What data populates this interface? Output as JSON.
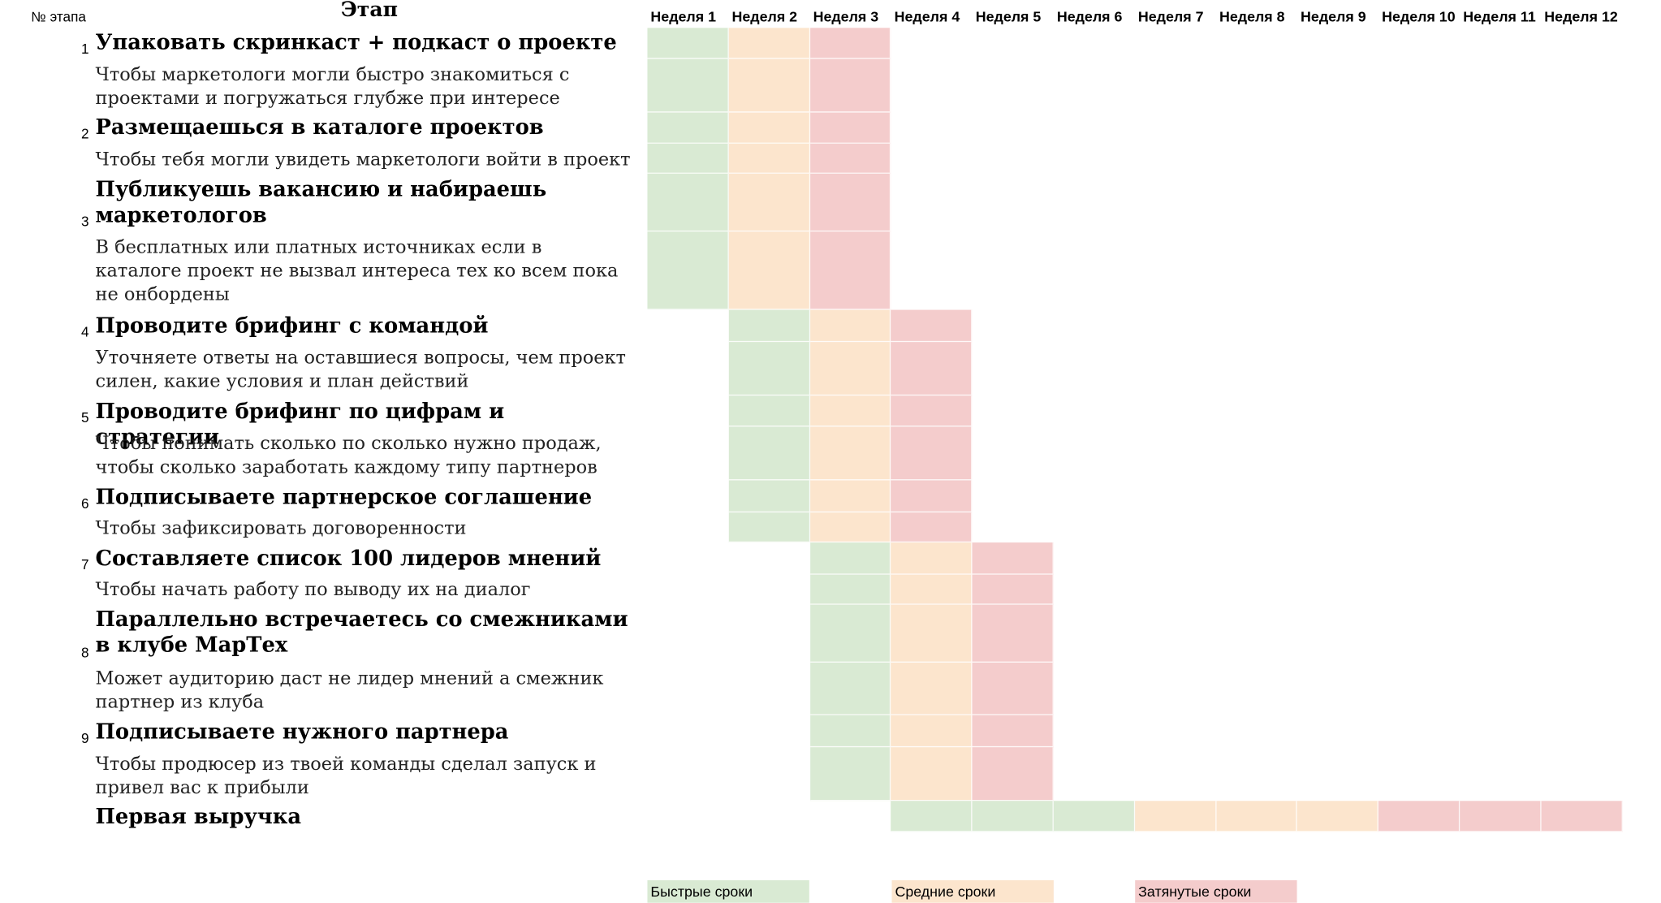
{
  "header": {
    "num_label": "№ этапа",
    "stage_label": "Этап",
    "weeks": [
      "Неделя 1",
      "Неделя 2",
      "Неделя 3",
      "Неделя 4",
      "Неделя 5",
      "Неделя 6",
      "Неделя 7",
      "Неделя 8",
      "Неделя 9",
      "Неделя 10",
      "Неделя 11",
      "Неделя 12"
    ]
  },
  "colors": {
    "fast": "#d9ead3",
    "medium": "#fce5cd",
    "slow": "#f4cccc"
  },
  "stages": [
    {
      "num": "1",
      "title": "Упаковать скринкаст + подкаст о проекте",
      "desc": "Чтобы маркетологи могли быстро знакомиться с проектами и погружаться глубже при интересе"
    },
    {
      "num": "2",
      "title": "Размещаешься в каталоге проектов",
      "desc": "Чтобы тебя могли увидеть маркетологи войти в проект"
    },
    {
      "num": "3",
      "title": "Публикуешь вакансию и набираешь маркетологов",
      "desc": "В бесплатных или платных источниках если в каталоге проект не вызвал интереса тех ко всем пока не онбордены"
    },
    {
      "num": "4",
      "title": "Проводите брифинг с командой",
      "desc": "Уточняете ответы на оставшиеся вопросы, чем проект силен, какие условия и план действий"
    },
    {
      "num": "5",
      "title": "Проводите брифинг по цифрам и стратегии",
      "desc": "Чтобы понимать сколько по сколько нужно продаж, чтобы сколько заработать каждому типу партнеров"
    },
    {
      "num": "6",
      "title": "Подписываете партнерское соглашение",
      "desc": "Чтобы зафиксировать договоренности"
    },
    {
      "num": "7",
      "title": "Составляете список 100 лидеров мнений",
      "desc": "Чтобы начать работу по выводу их на диалог"
    },
    {
      "num": "8",
      "title": "Параллельно встречаетесь со смежниками в клубе МарТех",
      "desc": "Может аудиторию даст не лидер мнений а смежник партнер из клуба"
    },
    {
      "num": "9",
      "title": "Подписываете нужного партнера",
      "desc": "Чтобы продюсер из твоей команды сделал запуск и привел вас к прибыли"
    },
    {
      "num": "",
      "title": "Первая выручка",
      "desc": ""
    }
  ],
  "schedule": [
    {
      "group": "1-3",
      "fast": [
        1
      ],
      "medium": [
        2
      ],
      "slow": [
        3
      ]
    },
    {
      "group": "4-6",
      "fast": [
        2
      ],
      "medium": [
        3
      ],
      "slow": [
        4
      ]
    },
    {
      "group": "7-9",
      "fast": [
        3
      ],
      "medium": [
        4
      ],
      "slow": [
        5
      ]
    },
    {
      "group": "revenue",
      "fast": [
        4,
        5,
        6
      ],
      "medium": [
        7,
        8,
        9
      ],
      "slow": [
        10,
        11,
        12
      ]
    }
  ],
  "legend": {
    "fast": "Быстрые сроки",
    "medium": "Средние сроки",
    "slow": "Затянутые сроки"
  }
}
